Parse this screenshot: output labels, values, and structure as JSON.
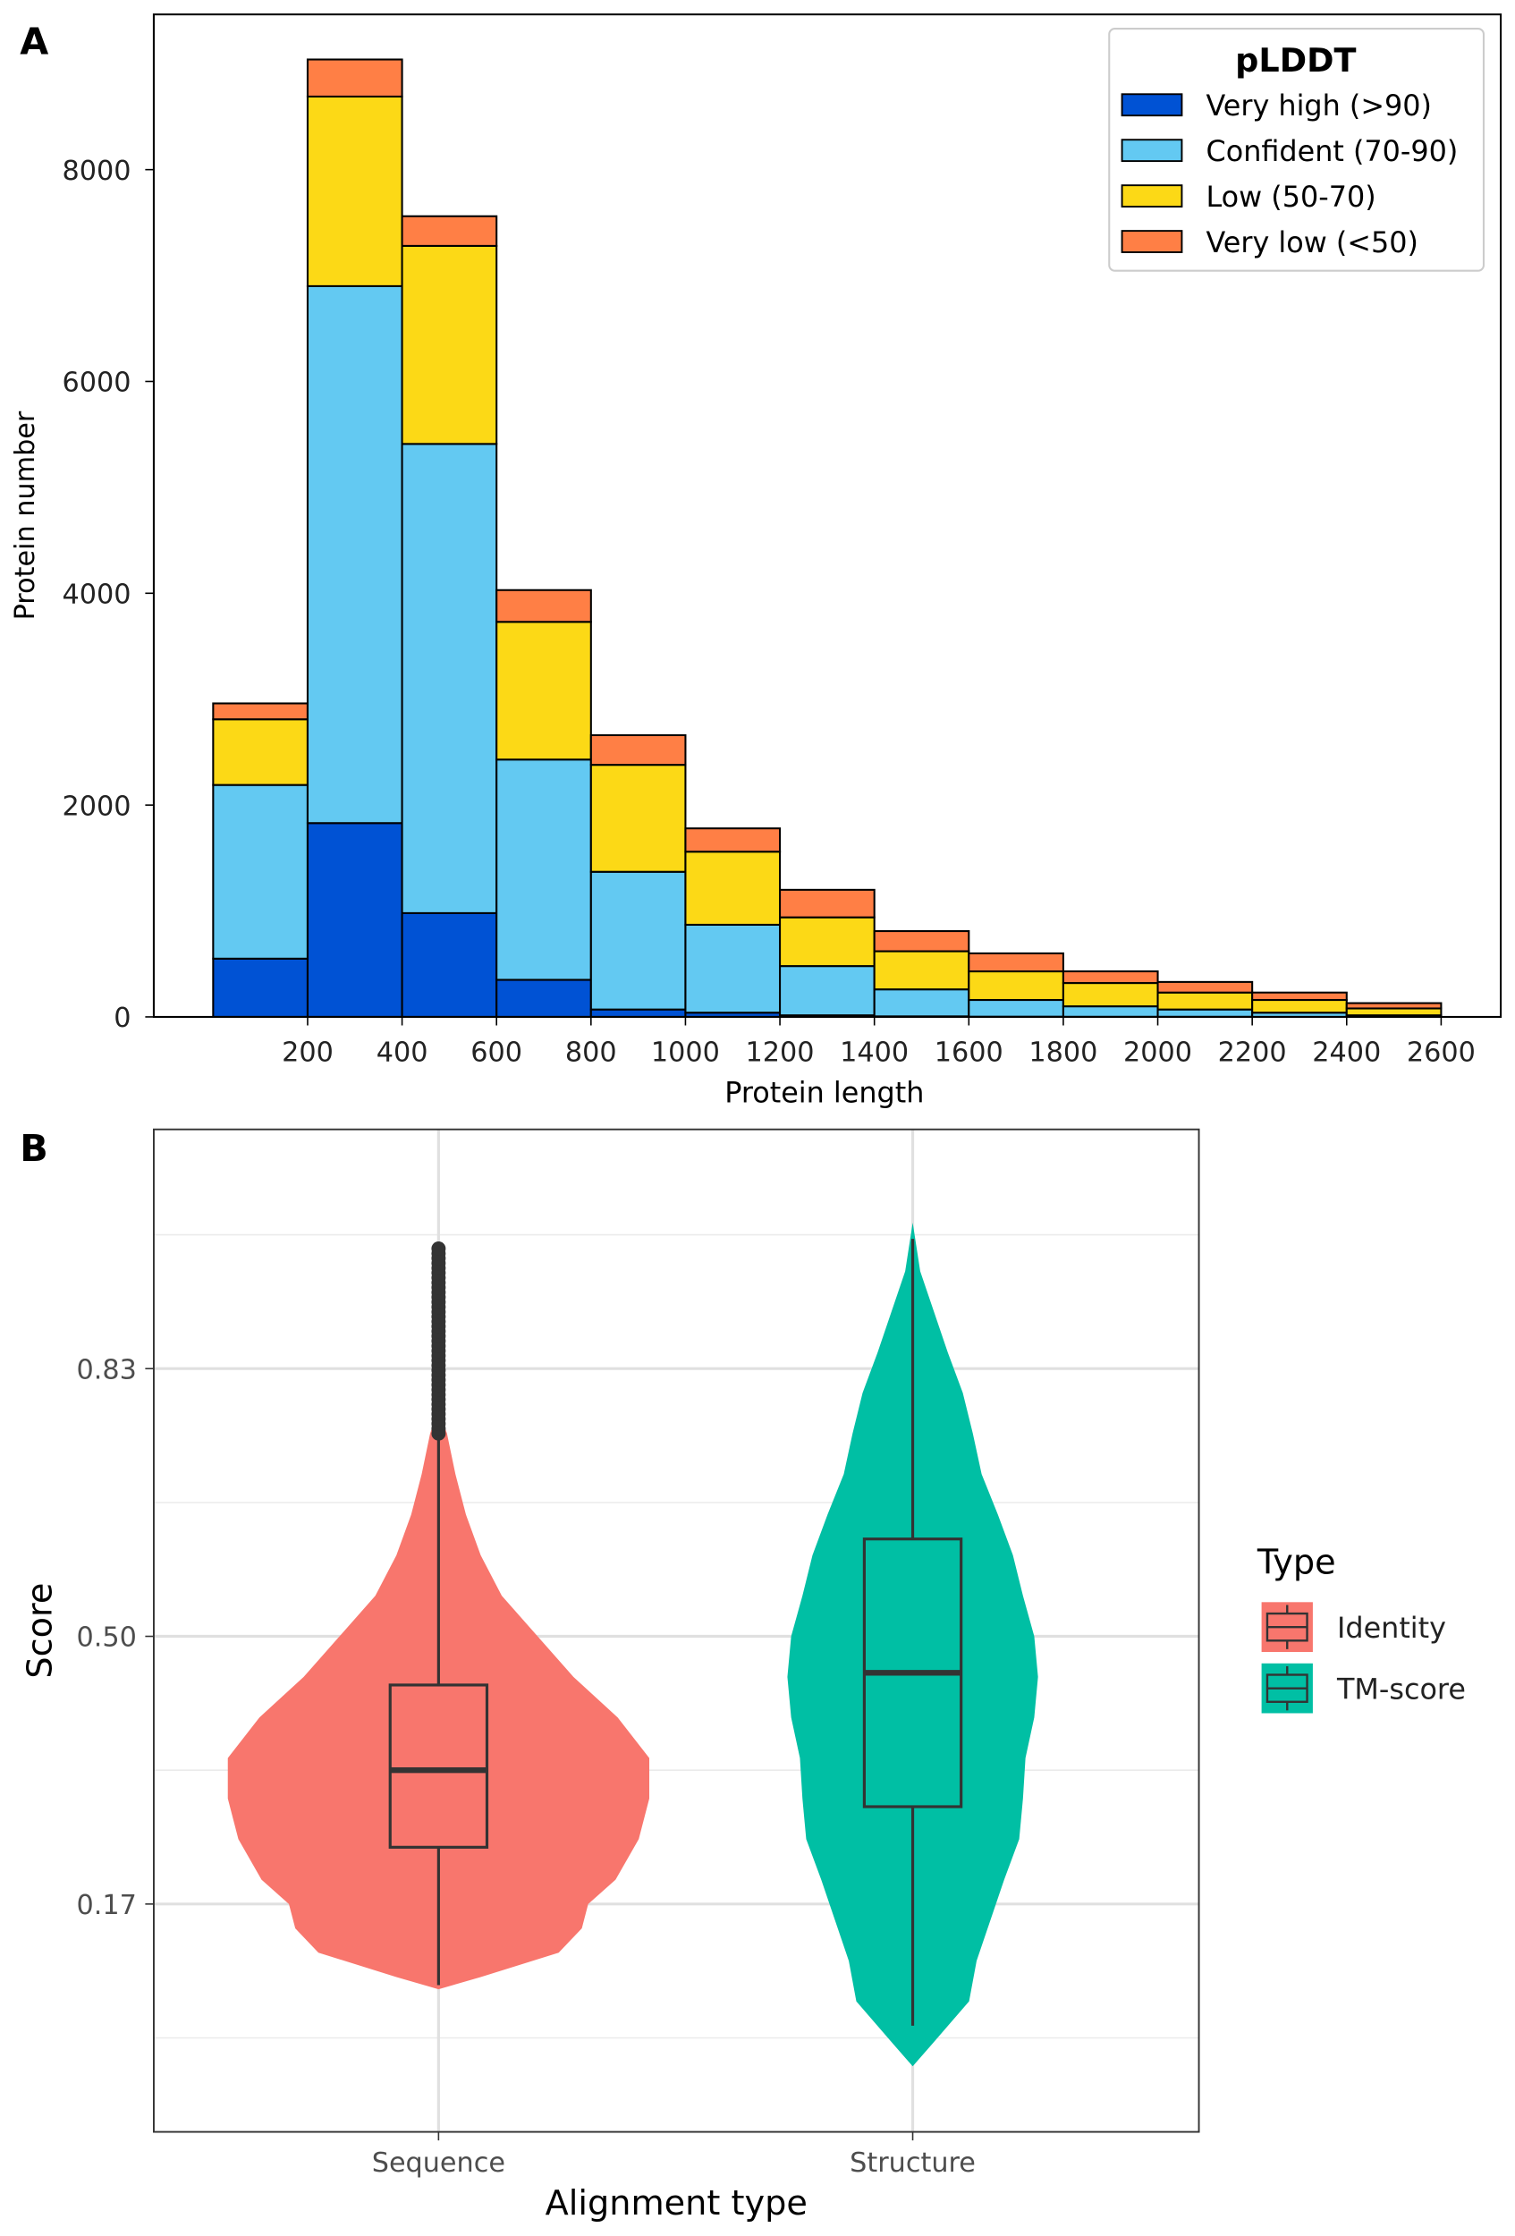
{
  "chart_data": [
    {
      "panel": "A",
      "type": "bar",
      "stacked": true,
      "xlabel": "Protein length",
      "ylabel": "Protein number",
      "bin_edges": [
        0,
        200,
        400,
        600,
        800,
        1000,
        1200,
        1400,
        1600,
        1800,
        2000,
        2200,
        2400,
        2600
      ],
      "x_tick_labels": [
        "200",
        "400",
        "600",
        "800",
        "1000",
        "1200",
        "1400",
        "1600",
        "1800",
        "2000",
        "2200",
        "2400",
        "2600"
      ],
      "y_tick_labels": [
        "0",
        "2000",
        "4000",
        "6000",
        "8000"
      ],
      "ylim": [
        0,
        9400
      ],
      "legend": {
        "title": "pLDDT",
        "placement": "top-right"
      },
      "series": [
        {
          "name": "Very high (>90)",
          "color": "#0052d4",
          "values": [
            550,
            1830,
            980,
            350,
            70,
            40,
            15,
            5,
            2,
            1,
            1,
            0,
            0
          ]
        },
        {
          "name": "Confident (70-90)",
          "color": "#63c9f2",
          "values": [
            1640,
            5070,
            4430,
            2080,
            1300,
            830,
            465,
            255,
            158,
            99,
            69,
            40,
            15
          ]
        },
        {
          "name": "Low (50-70)",
          "color": "#fcd916",
          "values": [
            620,
            1790,
            1870,
            1300,
            1010,
            690,
            460,
            360,
            270,
            220,
            160,
            120,
            65
          ]
        },
        {
          "name": "Very low (<50)",
          "color": "#ff7f45",
          "values": [
            150,
            350,
            280,
            300,
            280,
            220,
            260,
            190,
            170,
            110,
            100,
            70,
            50
          ]
        }
      ]
    },
    {
      "panel": "B",
      "type": "violin",
      "xlabel": "Alignment type",
      "ylabel": "Score",
      "categories": [
        "Sequence",
        "Structure"
      ],
      "y_tick_labels": [
        "0.17",
        "0.50",
        "0.83"
      ],
      "y_ticks": [
        0.17,
        0.5,
        0.83
      ],
      "ylim": [
        -0.09,
        1.14
      ],
      "legend": {
        "title": "Type",
        "placement": "right"
      },
      "series": [
        {
          "name": "Identity",
          "category": "Sequence",
          "color": "#f8766d",
          "box": {
            "min": 0.07,
            "q1": 0.24,
            "median": 0.335,
            "q3": 0.44,
            "max": 0.75
          },
          "outlier_range": [
            0.75,
            0.98
          ],
          "density": [
            [
              0.065,
              0
            ],
            [
              0.08,
              0.2
            ],
            [
              0.11,
              0.57
            ],
            [
              0.14,
              0.68
            ],
            [
              0.17,
              0.71
            ],
            [
              0.2,
              0.84
            ],
            [
              0.25,
              0.95
            ],
            [
              0.3,
              1
            ],
            [
              0.35,
              1
            ],
            [
              0.4,
              0.85
            ],
            [
              0.45,
              0.64
            ],
            [
              0.5,
              0.47
            ],
            [
              0.55,
              0.3
            ],
            [
              0.6,
              0.2
            ],
            [
              0.65,
              0.13
            ],
            [
              0.7,
              0.08
            ],
            [
              0.75,
              0.04
            ],
            [
              0.78,
              0
            ]
          ]
        },
        {
          "name": "TM-score",
          "category": "Structure",
          "color": "#00bfa4",
          "box": {
            "min": 0.02,
            "q1": 0.29,
            "median": 0.455,
            "q3": 0.62,
            "max": 0.99
          },
          "outlier_range": null,
          "density": [
            [
              -0.03,
              0
            ],
            [
              0.0,
              0.17
            ],
            [
              0.05,
              0.45
            ],
            [
              0.1,
              0.51
            ],
            [
              0.15,
              0.62
            ],
            [
              0.2,
              0.73
            ],
            [
              0.25,
              0.85
            ],
            [
              0.3,
              0.88
            ],
            [
              0.35,
              0.9
            ],
            [
              0.4,
              0.97
            ],
            [
              0.45,
              1
            ],
            [
              0.5,
              0.97
            ],
            [
              0.55,
              0.88
            ],
            [
              0.6,
              0.8
            ],
            [
              0.65,
              0.68
            ],
            [
              0.7,
              0.55
            ],
            [
              0.75,
              0.48
            ],
            [
              0.8,
              0.4
            ],
            [
              0.85,
              0.28
            ],
            [
              0.9,
              0.17
            ],
            [
              0.95,
              0.06
            ],
            [
              1.01,
              0
            ]
          ]
        }
      ]
    }
  ],
  "panel_labels": [
    "A",
    "B"
  ]
}
